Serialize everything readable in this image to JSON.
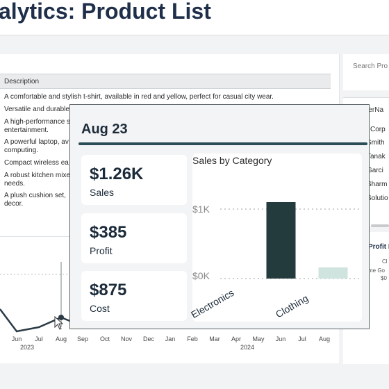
{
  "header": {
    "title": "alytics: Product List"
  },
  "table": {
    "column_header": "Description",
    "rows": [
      [
        "A comfortable and stylish t-shirt, available in red and yellow, perfect for casual city wear."
      ],
      [
        "Versatile and durable"
      ],
      [
        "A high-performance s",
        "entertainment."
      ],
      [
        "A powerful laptop, av",
        "computing."
      ],
      [
        "Compact wireless ea"
      ],
      [
        "A robust kitchen mixe",
        "needs."
      ],
      [
        "A plush cushion set,",
        "decor."
      ]
    ]
  },
  "search": {
    "placeholder": "Search Pro"
  },
  "customers": {
    "header": "merNa",
    "items": [
      "l Corp",
      "Smith",
      "Tanak",
      "Garci",
      "Sharm",
      "Solutio"
    ]
  },
  "profit_panel": {
    "title": "Profit I",
    "labels": [
      "Cl",
      "me Go",
      "$0"
    ]
  },
  "line_chart": {
    "months": [
      "Jun",
      "Jul",
      "Aug",
      "Sep",
      "Oct",
      "Nov",
      "Dec",
      "Jan",
      "Feb",
      "Mar",
      "Apr",
      "May",
      "Jun",
      "Jul",
      "Aug"
    ],
    "years": [
      "2023",
      "2024"
    ]
  },
  "tooltip": {
    "title": "Aug 23",
    "kpis": [
      {
        "value": "$1.26K",
        "label": "Sales"
      },
      {
        "value": "$385",
        "label": "Profit"
      },
      {
        "value": "$875",
        "label": "Cost"
      }
    ],
    "bar_title": "Sales by Category",
    "y_ticks": [
      "$1K",
      "$0K"
    ]
  },
  "chart_data": {
    "type": "bar",
    "title": "Sales by Category",
    "categories": [
      "Electronics",
      "Clothing"
    ],
    "values": [
      1100,
      160
    ],
    "ylim": [
      0,
      1200
    ],
    "y_ticks": [
      0,
      1000
    ],
    "colors": [
      "#233b3d",
      "#cfe3df"
    ],
    "grid": true
  },
  "colors": {
    "accent": "#2a4d57",
    "title": "#1f2f4a"
  }
}
